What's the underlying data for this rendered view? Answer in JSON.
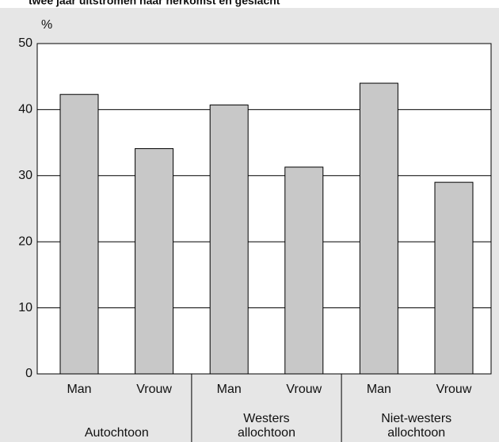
{
  "chart_data": {
    "type": "bar",
    "title": "twee jaar uitstromen naar herkomst en geslacht",
    "y_label": "%",
    "categories": [
      "Man",
      "Vrouw",
      "Man",
      "Vrouw",
      "Man",
      "Vrouw"
    ],
    "groups": [
      [
        "Autochtoon"
      ],
      [
        "Westers",
        "allochtoon"
      ],
      [
        "Niet-westers",
        "allochtoon"
      ]
    ],
    "values": [
      42.3,
      34.1,
      40.7,
      31.3,
      44.0,
      29.0
    ],
    "color": "#c8c8c8",
    "ylim": [
      0,
      50
    ],
    "yticks": [
      0,
      10,
      20,
      30,
      40,
      50
    ],
    "grid": true
  }
}
